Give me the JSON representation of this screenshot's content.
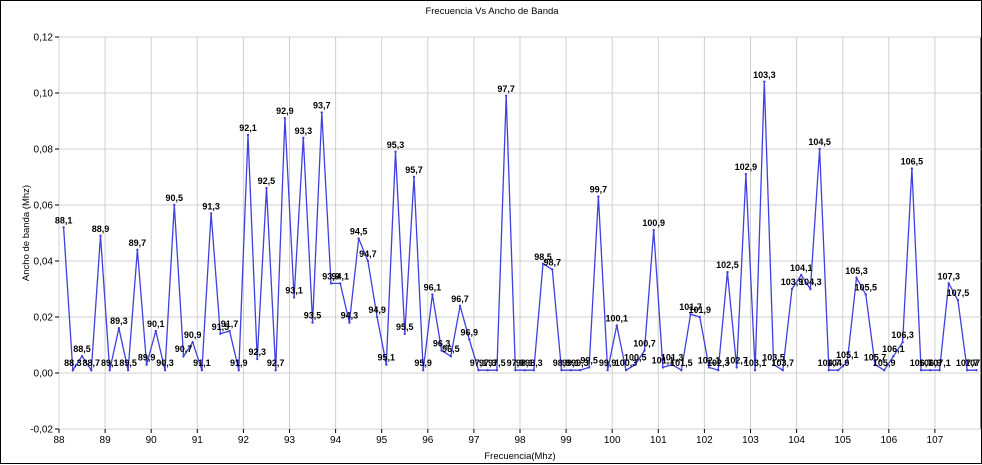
{
  "chart_data": {
    "type": "line",
    "title": "Frecuencia Vs Ancho de Banda",
    "xlabel": "Frecuencia(Mhz)",
    "ylabel": "Ancho de banda (Mhz)",
    "xlim": [
      88,
      108
    ],
    "ylim": [
      -0.02,
      0.12
    ],
    "xticks": [
      88,
      89,
      90,
      91,
      92,
      93,
      94,
      95,
      96,
      97,
      98,
      99,
      100,
      101,
      102,
      103,
      104,
      105,
      106,
      107
    ],
    "xtick_labels": [
      "88",
      "89",
      "90",
      "91",
      "92",
      "93",
      "94",
      "95",
      "96",
      "97",
      "98",
      "99",
      "100",
      "101",
      "102",
      "103",
      "104",
      "105",
      "106",
      "107"
    ],
    "yticks": [
      -0.02,
      0,
      0.02,
      0.04,
      0.06,
      0.08,
      0.1,
      0.12
    ],
    "ytick_labels": [
      "-0,02",
      "0,00",
      "0,02",
      "0,04",
      "0,06",
      "0,08",
      "0,10",
      "0,12"
    ],
    "grid": true,
    "line_color": "#4040e0",
    "series": [
      {
        "x": [
          88.1,
          88.3,
          88.5,
          88.7,
          88.9,
          89.1,
          89.3,
          89.5,
          89.7,
          89.9,
          90.1,
          90.3,
          90.5,
          90.7,
          90.9,
          91.1,
          91.3,
          91.5,
          91.7,
          91.9,
          92.1,
          92.3,
          92.5,
          92.7,
          92.9,
          93.1,
          93.3,
          93.5,
          93.7,
          93.9,
          94.1,
          94.3,
          94.5,
          94.7,
          94.9,
          95.1,
          95.3,
          95.5,
          95.7,
          95.9,
          96.1,
          96.3,
          96.5,
          96.7,
          96.9,
          97.1,
          97.3,
          97.5,
          97.7,
          97.9,
          98.1,
          98.3,
          98.5,
          98.7,
          98.9,
          99.1,
          99.3,
          99.5,
          99.7,
          99.9,
          100.1,
          100.3,
          100.5,
          100.7,
          100.9,
          101.1,
          101.3,
          101.5,
          101.7,
          101.9,
          102.1,
          102.3,
          102.5,
          102.7,
          102.9,
          103.1,
          103.3,
          103.5,
          103.7,
          103.9,
          104.1,
          104.3,
          104.5,
          104.7,
          104.9,
          105.1,
          105.3,
          105.5,
          105.7,
          105.9,
          106.1,
          106.3,
          106.5,
          106.7,
          106.9,
          107.1,
          107.3,
          107.5,
          107.7,
          107.9
        ],
        "y": [
          0.052,
          0.001,
          0.006,
          0.001,
          0.049,
          0.001,
          0.016,
          0.001,
          0.044,
          0.003,
          0.015,
          0.001,
          0.06,
          0.006,
          0.011,
          0.001,
          0.057,
          0.014,
          0.015,
          0.001,
          0.085,
          0.005,
          0.066,
          0.001,
          0.091,
          0.027,
          0.084,
          0.018,
          0.093,
          0.032,
          0.032,
          0.018,
          0.048,
          0.04,
          0.02,
          0.003,
          0.079,
          0.014,
          0.07,
          0.001,
          0.028,
          0.008,
          0.006,
          0.024,
          0.012,
          0.001,
          0.001,
          0.001,
          0.099,
          0.001,
          0.001,
          0.001,
          0.039,
          0.037,
          0.001,
          0.001,
          0.001,
          0.002,
          0.063,
          0.001,
          0.017,
          0.001,
          0.003,
          0.008,
          0.051,
          0.002,
          0.003,
          0.001,
          0.021,
          0.02,
          0.002,
          0.001,
          0.036,
          0.002,
          0.071,
          0.001,
          0.104,
          0.003,
          0.001,
          0.03,
          0.035,
          0.03,
          0.08,
          0.001,
          0.001,
          0.004,
          0.034,
          0.028,
          0.003,
          0.001,
          0.006,
          0.011,
          0.073,
          0.001,
          0.001,
          0.001,
          0.032,
          0.026,
          0.001,
          0.001
        ]
      }
    ],
    "point_labels": [
      "88,1",
      "88,3",
      "88,5",
      "88,7",
      "88,9",
      "89,1",
      "89,3",
      "89,5",
      "89,7",
      "89,9",
      "90,1",
      "90,3",
      "90,5",
      "90,7",
      "90,9",
      "91,1",
      "91,3",
      "91,5",
      "91,7",
      "91,9",
      "92,1",
      "92,3",
      "92,5",
      "92,7",
      "92,9",
      "93,1",
      "93,3",
      "93,5",
      "93,7",
      "93,9",
      "94,1",
      "94,3",
      "94,5",
      "94,7",
      "94,9",
      "95,1",
      "95,3",
      "95,5",
      "95,7",
      "95,9",
      "96,1",
      "96,3",
      "96,5",
      "96,7",
      "96,9",
      "97,1",
      "97,3",
      "97,5",
      "97,7",
      "97,9",
      "98,1",
      "98,3",
      "98,5",
      "98,7",
      "98,9",
      "99,1",
      "99,3",
      "99,5",
      "99,7",
      "99,9",
      "100,1",
      "100,3",
      "100,5",
      "100,7",
      "100,9",
      "101,1",
      "101,3",
      "101,5",
      "101,7",
      "101,9",
      "102,1",
      "102,3",
      "102,5",
      "102,7",
      "102,9",
      "103,1",
      "103,3",
      "103,5",
      "103,7",
      "103,9",
      "104,1",
      "104,3",
      "104,5",
      "104,7",
      "104,9",
      "105,1",
      "105,3",
      "105,5",
      "105,7",
      "105,9",
      "106,1",
      "106,3",
      "106,5",
      "106,7",
      "106,9",
      "107,1",
      "107,3",
      "107,5",
      "107,7",
      "107,9"
    ]
  }
}
